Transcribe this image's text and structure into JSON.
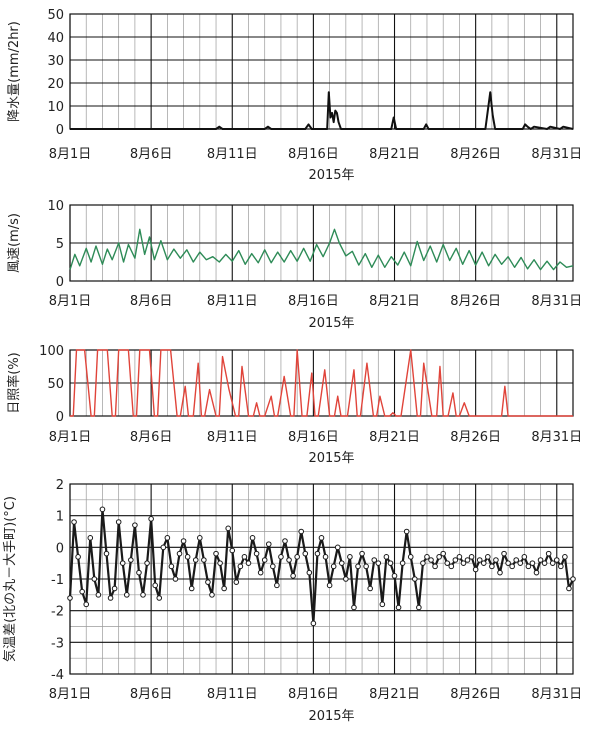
{
  "chart_data": [
    {
      "type": "line",
      "ylabel": "降水量(mm/2hr)",
      "xlabel": "2015年",
      "ylim": [
        0,
        50
      ],
      "yticks": [
        0,
        10,
        20,
        30,
        40,
        50
      ],
      "xlim": [
        1,
        32
      ],
      "xtick_labels": [
        "8月1日",
        "8月6日",
        "8月11日",
        "8月16日",
        "8月21日",
        "8月26日",
        "8月31日"
      ],
      "grid": true,
      "color": "#111111",
      "series": [
        {
          "x": [
            1,
            10,
            10.2,
            10.4,
            13,
            13.2,
            13.4,
            15.5,
            15.7,
            15.9,
            16.85,
            16.95,
            17.05,
            17.15,
            17.25,
            17.35,
            17.45,
            17.55,
            17.7,
            17.85,
            20.8,
            20.95,
            21.1,
            21.3,
            22.8,
            22.95,
            23.1,
            26.6,
            26.75,
            26.9,
            27.05,
            27.2,
            28.9,
            29.05,
            29.2,
            29.4,
            29.6,
            30.4,
            30.6,
            31.2,
            31.4,
            32
          ],
          "y": [
            0,
            0,
            1,
            0,
            0,
            1,
            0,
            0,
            2,
            0,
            0,
            16,
            5,
            7,
            3,
            8,
            7,
            3,
            0,
            0,
            0,
            5,
            0,
            0,
            0,
            2,
            0,
            0,
            8,
            16,
            6,
            0,
            0,
            2,
            1,
            0,
            1,
            0,
            1,
            0,
            1,
            0
          ]
        }
      ]
    },
    {
      "type": "line",
      "ylabel": "風速(m/s)",
      "xlabel": "2015年",
      "ylim": [
        0,
        10
      ],
      "yticks": [
        0,
        5,
        10
      ],
      "xlim": [
        1,
        32
      ],
      "xtick_labels": [
        "8月1日",
        "8月6日",
        "8月11日",
        "8月16日",
        "8月21日",
        "8月26日",
        "8月31日"
      ],
      "grid": true,
      "color": "#2e8b57",
      "series": [
        {
          "x": [
            1,
            1.3,
            1.6,
            2,
            2.3,
            2.6,
            3,
            3.3,
            3.6,
            4,
            4.3,
            4.6,
            5,
            5.3,
            5.6,
            5.9,
            6.2,
            6.6,
            7,
            7.4,
            7.8,
            8.2,
            8.6,
            9,
            9.4,
            9.8,
            10.2,
            10.6,
            11,
            11.4,
            11.8,
            12.2,
            12.6,
            13,
            13.4,
            13.8,
            14.2,
            14.6,
            15,
            15.4,
            15.8,
            16.2,
            16.6,
            17,
            17.3,
            17.6,
            18,
            18.4,
            18.8,
            19.2,
            19.6,
            20,
            20.4,
            20.8,
            21.2,
            21.6,
            22,
            22.4,
            22.8,
            23.2,
            23.6,
            24,
            24.4,
            24.8,
            25.2,
            25.6,
            26,
            26.4,
            26.8,
            27.2,
            27.6,
            28,
            28.4,
            28.8,
            29.2,
            29.6,
            30,
            30.4,
            30.8,
            31.2,
            31.6,
            32
          ],
          "y": [
            1.5,
            3.5,
            2.0,
            4.3,
            2.5,
            4.6,
            2.2,
            4.2,
            2.8,
            5.0,
            2.5,
            4.8,
            3.0,
            6.8,
            3.5,
            5.8,
            2.8,
            5.3,
            2.8,
            4.2,
            3.0,
            4.1,
            2.5,
            3.8,
            2.8,
            3.2,
            2.5,
            3.5,
            2.6,
            4.0,
            2.2,
            3.6,
            2.4,
            4.1,
            2.4,
            3.8,
            2.5,
            4.0,
            2.6,
            4.3,
            2.6,
            4.8,
            3.2,
            5.0,
            6.8,
            5.0,
            3.3,
            3.9,
            2.1,
            3.6,
            1.8,
            3.4,
            1.8,
            3.2,
            2.1,
            3.8,
            2.0,
            5.2,
            2.7,
            4.6,
            2.5,
            4.8,
            2.7,
            4.3,
            2.2,
            4.0,
            2.1,
            3.8,
            2.0,
            3.5,
            2.2,
            3.2,
            1.8,
            3.1,
            1.6,
            2.8,
            1.5,
            2.6,
            1.5,
            2.5,
            1.8,
            2.0
          ]
        }
      ]
    },
    {
      "type": "line",
      "ylabel": "日照率(%)",
      "xlabel": "2015年",
      "ylim": [
        0,
        100
      ],
      "yticks": [
        0,
        50,
        100
      ],
      "xlim": [
        1,
        32
      ],
      "xtick_labels": [
        "8月1日",
        "8月6日",
        "8月11日",
        "8月16日",
        "8月21日",
        "8月26日",
        "8月31日"
      ],
      "grid": true,
      "color": "#e0443a",
      "series": [
        {
          "x": [
            1,
            1.2,
            1.4,
            1.9,
            2.3,
            2.5,
            2.7,
            3.3,
            3.6,
            3.8,
            4.0,
            4.6,
            4.9,
            5.1,
            5.3,
            5.9,
            6.2,
            6.4,
            6.6,
            7.2,
            7.6,
            7.8,
            8.1,
            8.3,
            8.6,
            8.9,
            9.1,
            9.3,
            9.6,
            10.0,
            10.2,
            10.4,
            10.8,
            11.2,
            11.4,
            11.6,
            12.0,
            12.3,
            12.5,
            12.7,
            13.0,
            13.4,
            13.6,
            13.8,
            14.2,
            14.6,
            14.8,
            15.0,
            15.3,
            15.6,
            15.9,
            16.1,
            16.3,
            16.7,
            17.0,
            17.3,
            17.5,
            17.7,
            18.1,
            18.5,
            18.7,
            18.9,
            19.3,
            19.7,
            19.9,
            20.1,
            20.4,
            20.7,
            20.9,
            21.1,
            21.4,
            22.0,
            22.4,
            22.6,
            22.8,
            23.3,
            23.6,
            23.8,
            24.0,
            24.3,
            24.6,
            24.8,
            25.0,
            25.3,
            25.6,
            25.8,
            26.0,
            27.3,
            27.6,
            27.8,
            28.0,
            32
          ],
          "y": [
            0,
            0,
            100,
            100,
            0,
            0,
            100,
            100,
            0,
            0,
            100,
            100,
            0,
            0,
            100,
            100,
            0,
            0,
            100,
            100,
            0,
            0,
            45,
            0,
            0,
            80,
            0,
            0,
            40,
            0,
            0,
            90,
            40,
            0,
            0,
            75,
            0,
            0,
            20,
            0,
            0,
            30,
            0,
            0,
            60,
            0,
            0,
            100,
            0,
            0,
            65,
            0,
            0,
            70,
            0,
            0,
            30,
            0,
            0,
            70,
            0,
            0,
            80,
            0,
            0,
            30,
            0,
            0,
            5,
            0,
            0,
            100,
            0,
            0,
            80,
            0,
            0,
            75,
            0,
            0,
            35,
            0,
            0,
            20,
            0,
            0,
            0,
            0,
            0,
            45,
            0,
            0
          ]
        }
      ]
    },
    {
      "type": "scatter",
      "ylabel": "気温差(北の丸－大手町)(°C)",
      "xlabel": "2015年",
      "ylim": [
        -4,
        2
      ],
      "yticks": [
        -4,
        -3,
        -2,
        -1,
        0,
        1,
        2
      ],
      "xlim": [
        1,
        32
      ],
      "xtick_labels": [
        "8月1日",
        "8月6日",
        "8月11日",
        "8月16日",
        "8月21日",
        "8月26日",
        "8月31日"
      ],
      "grid": true,
      "color": "#1a1a1a",
      "series": [
        {
          "x": [
            1,
            1.25,
            1.5,
            1.75,
            2,
            2.25,
            2.5,
            2.75,
            3,
            3.25,
            3.5,
            3.75,
            4,
            4.25,
            4.5,
            4.75,
            5,
            5.25,
            5.5,
            5.75,
            6,
            6.25,
            6.5,
            6.75,
            7,
            7.25,
            7.5,
            7.75,
            8,
            8.25,
            8.5,
            8.75,
            9,
            9.25,
            9.5,
            9.75,
            10,
            10.25,
            10.5,
            10.75,
            11,
            11.25,
            11.5,
            11.75,
            12,
            12.25,
            12.5,
            12.75,
            13,
            13.25,
            13.5,
            13.75,
            14,
            14.25,
            14.5,
            14.75,
            15,
            15.25,
            15.5,
            15.75,
            16,
            16.25,
            16.5,
            16.75,
            17,
            17.25,
            17.5,
            17.75,
            18,
            18.25,
            18.5,
            18.75,
            19,
            19.25,
            19.5,
            19.75,
            20,
            20.25,
            20.5,
            20.75,
            21,
            21.25,
            21.5,
            21.75,
            22,
            22.25,
            22.5,
            22.75,
            23,
            23.25,
            23.5,
            23.75,
            24,
            24.25,
            24.5,
            24.75,
            25,
            25.25,
            25.5,
            25.75,
            26,
            26.25,
            26.5,
            26.75,
            27,
            27.25,
            27.5,
            27.75,
            28,
            28.25,
            28.5,
            28.75,
            29,
            29.25,
            29.5,
            29.75,
            30,
            30.25,
            30.5,
            30.75,
            31,
            31.25,
            31.5,
            31.75,
            32
          ],
          "y": [
            -1.6,
            0.8,
            -0.3,
            -1.4,
            -1.8,
            0.3,
            -1.0,
            -1.5,
            1.2,
            -0.2,
            -1.6,
            -1.3,
            0.8,
            -0.5,
            -1.5,
            -0.4,
            0.7,
            -0.8,
            -1.5,
            -0.5,
            0.9,
            -1.2,
            -1.6,
            0.0,
            0.3,
            -0.6,
            -1.0,
            -0.2,
            0.2,
            -0.3,
            -1.3,
            -0.4,
            0.3,
            -0.4,
            -1.1,
            -1.5,
            -0.2,
            -0.5,
            -1.3,
            0.6,
            -0.1,
            -1.1,
            -0.6,
            -0.3,
            -0.5,
            0.3,
            -0.2,
            -0.8,
            -0.4,
            0.1,
            -0.6,
            -1.2,
            -0.3,
            0.2,
            -0.4,
            -0.9,
            -0.3,
            0.5,
            -0.2,
            -0.8,
            -2.4,
            -0.2,
            0.3,
            -0.3,
            -1.2,
            -0.6,
            0.0,
            -0.5,
            -1.0,
            -0.3,
            -1.9,
            -0.6,
            -0.2,
            -0.6,
            -1.3,
            -0.4,
            -0.5,
            -1.8,
            -0.3,
            -0.5,
            -0.9,
            -1.9,
            -0.5,
            0.5,
            -0.3,
            -1.0,
            -1.9,
            -0.5,
            -0.3,
            -0.4,
            -0.6,
            -0.3,
            -0.2,
            -0.5,
            -0.6,
            -0.4,
            -0.3,
            -0.5,
            -0.4,
            -0.3,
            -0.7,
            -0.4,
            -0.5,
            -0.3,
            -0.6,
            -0.4,
            -0.8,
            -0.2,
            -0.5,
            -0.6,
            -0.4,
            -0.5,
            -0.3,
            -0.6,
            -0.5,
            -0.8,
            -0.4,
            -0.5,
            -0.2,
            -0.5,
            -0.4,
            -0.6,
            -0.3,
            -1.3,
            -1.0
          ]
        }
      ]
    }
  ]
}
